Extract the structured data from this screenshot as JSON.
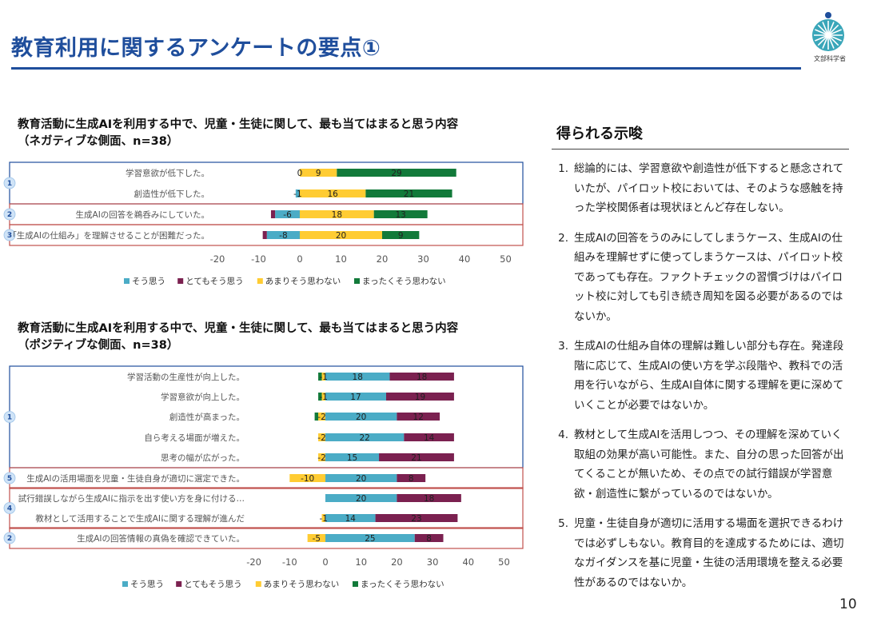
{
  "page": {
    "title": "教育利用に関するアンケートの要点①",
    "logo_text": "文部科学省",
    "page_number": "10"
  },
  "colors": {
    "title_blue": "#1f4e9c",
    "teal": "#4bacc6",
    "maroon": "#7b2150",
    "yellow": "#ffcc33",
    "green": "#127a3a",
    "group_blue_border": "#1f4e9c",
    "group_red_border": "#c0504d",
    "badge_fill": "#cfe3f7"
  },
  "chart_data": [
    {
      "type": "bar",
      "orientation": "horizontal",
      "stacked": "diverging",
      "title": "教育活動に生成AIを利用する中で、児童・生徒に関して、最も当てはまると思う内容",
      "subtitle": "（ネガティブな側面、n=38）",
      "categories": [
        "学習意欲が低下した。",
        "創造性が低下した。",
        "生成AIの回答を鵜呑みにしていた。",
        "「生成AIの仕組み」を理解させることが困難だった。"
      ],
      "series": [
        {
          "name": "そう思う",
          "values": [
            0,
            -1,
            -6,
            -8
          ]
        },
        {
          "name": "とてもそう思う",
          "values": [
            0,
            0,
            -1,
            -1
          ]
        },
        {
          "name": "あまりそう思わない",
          "values": [
            9,
            16,
            18,
            20
          ]
        },
        {
          "name": "まったくそう思わない",
          "values": [
            29,
            21,
            13,
            9
          ]
        }
      ],
      "value_labels": [
        [
          "0",
          "",
          "9",
          "29"
        ],
        [
          "-1",
          "",
          "16",
          "21"
        ],
        [
          "-6",
          "",
          "18",
          "13"
        ],
        [
          "-8",
          "",
          "20",
          "9"
        ]
      ],
      "xlim": [
        -20,
        50
      ],
      "xticks": [
        "-20",
        "-10",
        "0",
        "10",
        "20",
        "30",
        "40",
        "50"
      ],
      "legend": [
        "そう思う",
        "とてもそう思う",
        "あまりそう思わない",
        "まったくそう思わない"
      ],
      "legend_position": "bottom",
      "groups": [
        {
          "badge": "1",
          "rows": [
            0,
            1
          ],
          "border": "blue"
        },
        {
          "badge": "2",
          "rows": [
            2
          ],
          "border": "red"
        },
        {
          "badge": "3",
          "rows": [
            3
          ],
          "border": "red"
        }
      ]
    },
    {
      "type": "bar",
      "orientation": "horizontal",
      "stacked": "diverging",
      "title": "教育活動に生成AIを利用する中で、児童・生徒に関して、最も当てはまると思う内容",
      "subtitle": "（ポジティブな側面、n=38）",
      "categories": [
        "学習活動の生産性が向上した。",
        "学習意欲が向上した。",
        "創造性が高まった。",
        "自ら考える場面が増えた。",
        "思考の幅が広がった。",
        "生成AIの活用場面を児童・生徒自身が適切に選定できた。",
        "試行錯誤しながら生成AIに指示を出す使い方を身に付ける…",
        "教材として活用することで生成AIに関する理解が進んだ",
        "生成AIの回答情報の真偽を確認できていた。"
      ],
      "series": [
        {
          "name": "そう思う",
          "values": [
            18,
            17,
            20,
            22,
            15,
            20,
            20,
            14,
            25
          ]
        },
        {
          "name": "とてもそう思う",
          "values": [
            18,
            19,
            12,
            14,
            21,
            8,
            18,
            23,
            8
          ]
        },
        {
          "name": "あまりそう思わない",
          "values": [
            -1,
            -1,
            -2,
            -2,
            -2,
            -10,
            0,
            -1,
            -5
          ]
        },
        {
          "name": "まったくそう思わない",
          "values": [
            -1,
            -1,
            -1,
            0,
            0,
            0,
            0,
            0,
            0
          ]
        }
      ],
      "value_labels": [
        [
          "18",
          "18",
          "-1",
          ""
        ],
        [
          "17",
          "19",
          "-1",
          ""
        ],
        [
          "20",
          "12",
          "-2",
          ""
        ],
        [
          "22",
          "14",
          "-2",
          ""
        ],
        [
          "15",
          "21",
          "-2",
          ""
        ],
        [
          "20",
          "8",
          "-10",
          ""
        ],
        [
          "20",
          "18",
          "",
          ""
        ],
        [
          "14",
          "23",
          "-1",
          ""
        ],
        [
          "25",
          "8",
          "-5",
          ""
        ]
      ],
      "xlim": [
        -20,
        50
      ],
      "xticks": [
        "-20",
        "-10",
        "0",
        "10",
        "20",
        "30",
        "40",
        "50"
      ],
      "legend": [
        "そう思う",
        "とてもそう思う",
        "あまりそう思わない",
        "まったくそう思わない"
      ],
      "legend_position": "bottom",
      "groups": [
        {
          "badge": "1",
          "rows": [
            0,
            1,
            2,
            3,
            4
          ],
          "border": "blue"
        },
        {
          "badge": "5",
          "rows": [
            5
          ],
          "border": "red"
        },
        {
          "badge": "4",
          "rows": [
            6,
            7
          ],
          "border": "red"
        },
        {
          "badge": "2",
          "rows": [
            8
          ],
          "border": "red"
        }
      ]
    }
  ],
  "implications": {
    "title": "得られる示唆",
    "items": [
      {
        "num": "1.",
        "text": "総論的には、学習意欲や創造性が低下すると懸念されていたが、パイロット校においては、そのような感触を持った学校関係者は現状ほとんど存在しない。"
      },
      {
        "num": "2.",
        "text": "生成AIの回答をうのみにしてしまうケース、生成AIの仕組みを理解せずに使ってしまうケースは、パイロット校であっても存在。ファクトチェックの習慣づけはパイロット校に対しても引き続き周知を図る必要があるのではないか。"
      },
      {
        "num": "3.",
        "text": "生成AIの仕組み自体の理解は難しい部分も存在。発達段階に応じて、生成AIの使い方を学ぶ段階や、教科での活用を行いながら、生成AI自体に関する理解を更に深めていくことが必要ではないか。"
      },
      {
        "num": "4.",
        "text": "教材として生成AIを活用しつつ、その理解を深めていく取組の効果が高い可能性。また、自分の思った回答が出てくることが無いため、その点での試行錯誤が学習意欲・創造性に繋がっているのではないか。"
      },
      {
        "num": "5.",
        "text": "児童・生徒自身が適切に活用する場面を選択できるわけでは必ずしもない。教育目的を達成するためには、適切なガイダンスを基に児童・生徒の活用環境を整える必要性があるのではないか。"
      }
    ]
  }
}
